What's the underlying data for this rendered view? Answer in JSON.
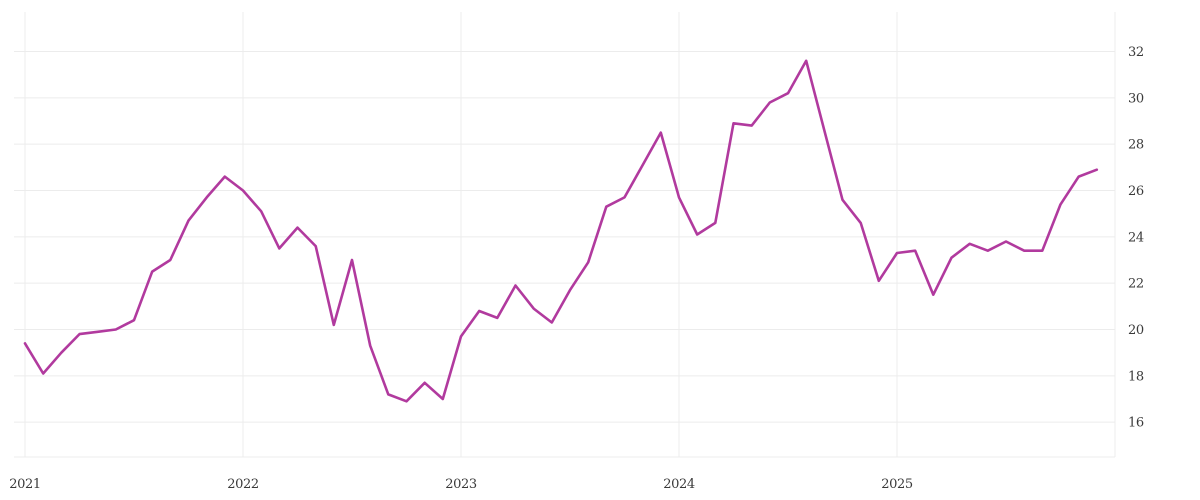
{
  "chart_data": {
    "type": "line",
    "title": "",
    "xlabel": "",
    "ylabel": "",
    "x_unit": "month",
    "x": [
      "2021-01",
      "2021-02",
      "2021-03",
      "2021-04",
      "2021-05",
      "2021-06",
      "2021-07",
      "2021-08",
      "2021-09",
      "2021-10",
      "2021-11",
      "2021-12",
      "2022-01",
      "2022-02",
      "2022-03",
      "2022-04",
      "2022-05",
      "2022-06",
      "2022-07",
      "2022-08",
      "2022-09",
      "2022-10",
      "2022-11",
      "2022-12",
      "2023-01",
      "2023-02",
      "2023-03",
      "2023-04",
      "2023-05",
      "2023-06",
      "2023-07",
      "2023-08",
      "2023-09",
      "2023-10",
      "2023-11",
      "2023-12",
      "2024-01",
      "2024-02",
      "2024-03",
      "2024-04",
      "2024-05",
      "2024-06",
      "2024-07",
      "2024-08",
      "2024-09",
      "2024-10",
      "2024-11",
      "2024-12",
      "2025-01",
      "2025-02",
      "2025-03",
      "2025-04",
      "2025-05",
      "2025-06",
      "2025-07",
      "2025-08",
      "2025-09",
      "2025-10",
      "2025-11",
      "2025-12"
    ],
    "values": [
      19.4,
      18.1,
      19.0,
      19.8,
      19.9,
      20.0,
      20.4,
      22.5,
      23.0,
      24.7,
      25.7,
      26.6,
      26.0,
      25.1,
      23.5,
      24.4,
      23.6,
      20.2,
      23.0,
      19.3,
      17.2,
      16.9,
      17.7,
      17.0,
      19.7,
      20.8,
      20.5,
      21.9,
      20.9,
      20.3,
      21.7,
      22.9,
      25.3,
      25.7,
      27.1,
      28.5,
      25.7,
      24.1,
      24.6,
      28.9,
      28.8,
      29.8,
      30.2,
      31.6,
      28.6,
      25.6,
      24.6,
      22.1,
      23.3,
      23.4,
      21.5,
      23.1,
      23.7,
      23.4,
      23.8,
      23.4,
      23.4,
      25.4,
      26.6,
      26.9
    ],
    "x_tick_labels": [
      "2021",
      "2022",
      "2023",
      "2024",
      "2025"
    ],
    "x_tick_month_indices": [
      0,
      12,
      24,
      36,
      48
    ],
    "extra_vertical_gridline_month_indices": [
      60
    ],
    "y_tick_labels": [
      "16",
      "18",
      "20",
      "22",
      "24",
      "26",
      "28",
      "30",
      "32"
    ],
    "y_ticks": [
      16,
      18,
      20,
      22,
      24,
      26,
      28,
      30,
      32
    ],
    "ylim": [
      14.5,
      33.7
    ],
    "y_axis_side": "right",
    "grid": true,
    "legend": "none"
  },
  "colors": {
    "line": "#b13a9e",
    "grid": "#ececec",
    "tick_text": "#3a3a3a",
    "background": "#ffffff"
  }
}
